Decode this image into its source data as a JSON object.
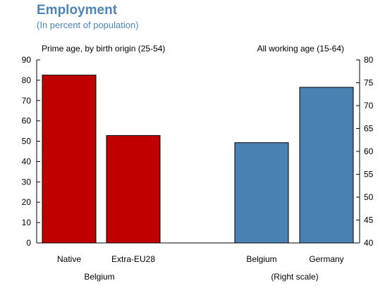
{
  "chart_data": {
    "type": "bar",
    "title": "Employment",
    "subtitle": "(In percent of population)",
    "left_panel": {
      "label": "Prime age, by birth origin (25-54)",
      "group_label": "Belgium",
      "categories": [
        "Native",
        "Extra-EU28"
      ],
      "values": [
        82.5,
        52.8
      ],
      "color": "#c00000",
      "axis": "left"
    },
    "right_panel": {
      "label": "All working age (15-64)",
      "group_label": "(Right scale)",
      "categories": [
        "Belgium",
        "Germany"
      ],
      "values": [
        61.9,
        74.0
      ],
      "color": "#4a82b4",
      "axis": "right"
    },
    "left_axis": {
      "ylim": [
        0,
        90
      ],
      "ticks": [
        "0",
        "10",
        "20",
        "30",
        "40",
        "50",
        "60",
        "70",
        "80",
        "90"
      ]
    },
    "right_axis": {
      "ylim": [
        40,
        80
      ],
      "ticks": [
        "40",
        "45",
        "50",
        "55",
        "60",
        "65",
        "70",
        "75",
        "80"
      ]
    },
    "grid": false
  }
}
